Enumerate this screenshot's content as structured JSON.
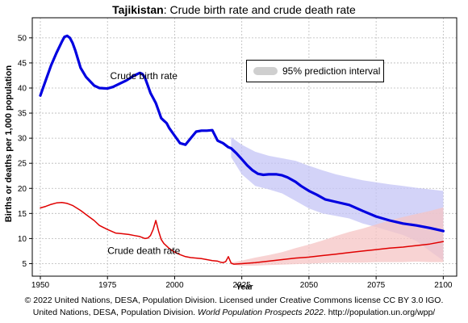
{
  "title_country": "Tajikistan",
  "title_rest": ": Crude birth rate and crude death rate",
  "footer_line1": "© 2022 United Nations, DESA, Population Division. Licensed under Creative Commons license CC BY 3.0 IGO.",
  "footer_line2_a": "United Nations, DESA, Population Division. ",
  "footer_line2_italic": "World Population Prospects 2022",
  "footer_line2_b": ". http://population.un.org/wpp/",
  "legend_label": "95% prediction interval",
  "chart_data": {
    "type": "line",
    "xlabel": "Year",
    "ylabel": "Births or deaths per 1,000 population",
    "xlim": [
      1947,
      2105
    ],
    "ylim": [
      2.5,
      54
    ],
    "x_ticks": [
      1950,
      1975,
      2000,
      2025,
      2050,
      2075,
      2100
    ],
    "y_ticks": [
      5,
      10,
      15,
      20,
      25,
      30,
      35,
      40,
      45,
      50
    ],
    "grid": true,
    "legend_position": "top-right",
    "colors": {
      "birth_line": "#0000e0",
      "birth_band": "#c4c4f6",
      "death_line": "#e00000",
      "death_band": "#f6c4c4",
      "grid": "#b8b8b8"
    },
    "series": [
      {
        "name": "Crude birth rate",
        "x": [
          1950,
          1952,
          1954,
          1956,
          1958,
          1959,
          1960,
          1961,
          1962,
          1963,
          1965,
          1967,
          1970,
          1972,
          1975,
          1977,
          1980,
          1982,
          1985,
          1987,
          1988,
          1989,
          1990,
          1991,
          1992,
          1993,
          1994,
          1995,
          1996,
          1997,
          1998,
          2000,
          2002,
          2004,
          2006,
          2008,
          2010,
          2012,
          2014,
          2016,
          2018,
          2020,
          2021,
          2023,
          2025,
          2027,
          2029,
          2031,
          2033,
          2035,
          2038,
          2040,
          2042,
          2045,
          2047,
          2050,
          2053,
          2056,
          2060,
          2065,
          2070,
          2075,
          2080,
          2085,
          2090,
          2095,
          2100
        ],
        "values": [
          38.5,
          41.5,
          44.5,
          47.0,
          49.2,
          50.2,
          50.4,
          50.0,
          49.0,
          47.5,
          44.0,
          42.2,
          40.5,
          40.0,
          39.9,
          40.2,
          41.0,
          41.5,
          42.5,
          43.0,
          42.8,
          42.0,
          40.5,
          39.0,
          38.0,
          37.0,
          35.5,
          34.0,
          33.5,
          33.0,
          32.0,
          30.5,
          29.0,
          28.7,
          30.0,
          31.3,
          31.5,
          31.5,
          31.6,
          29.5,
          29.0,
          28.2,
          28.0,
          27.0,
          25.8,
          24.6,
          23.6,
          22.9,
          22.7,
          22.8,
          22.8,
          22.6,
          22.2,
          21.3,
          20.5,
          19.5,
          18.7,
          17.8,
          17.3,
          16.7,
          15.5,
          14.4,
          13.6,
          13.0,
          12.6,
          12.1,
          11.5
        ]
      },
      {
        "name": "Crude death rate",
        "x": [
          1950,
          1952,
          1954,
          1956,
          1958,
          1960,
          1962,
          1965,
          1968,
          1970,
          1972,
          1975,
          1978,
          1980,
          1983,
          1985,
          1987,
          1989,
          1990,
          1991,
          1992,
          1993,
          1994,
          1995,
          1996,
          1997,
          1998,
          2000,
          2002,
          2004,
          2006,
          2008,
          2010,
          2012,
          2014,
          2016,
          2017,
          2018,
          2019,
          2020,
          2021,
          2022,
          2025,
          2030,
          2035,
          2040,
          2045,
          2050,
          2055,
          2060,
          2065,
          2070,
          2075,
          2080,
          2085,
          2090,
          2095,
          2100
        ],
        "values": [
          16.1,
          16.4,
          16.8,
          17.1,
          17.2,
          17.0,
          16.6,
          15.6,
          14.4,
          13.6,
          12.6,
          11.8,
          11.1,
          11.0,
          10.8,
          10.6,
          10.4,
          10.0,
          10.1,
          10.6,
          11.8,
          13.6,
          11.5,
          9.8,
          9.0,
          8.5,
          8.0,
          7.3,
          6.8,
          6.4,
          6.2,
          6.1,
          6.0,
          5.8,
          5.6,
          5.5,
          5.3,
          5.2,
          5.4,
          6.4,
          5.1,
          4.9,
          5.0,
          5.2,
          5.5,
          5.8,
          6.1,
          6.3,
          6.6,
          6.9,
          7.2,
          7.5,
          7.8,
          8.1,
          8.3,
          8.6,
          8.9,
          9.4
        ]
      }
    ],
    "prediction_intervals": [
      {
        "series": "Crude birth rate",
        "x": [
          2021,
          2025,
          2030,
          2035,
          2040,
          2045,
          2050,
          2055,
          2060,
          2065,
          2070,
          2075,
          2080,
          2085,
          2090,
          2095,
          2100
        ],
        "lower": [
          26.2,
          22.8,
          20.5,
          19.8,
          19.0,
          17.5,
          16.0,
          15.0,
          14.5,
          14.0,
          13.0,
          12.3,
          11.5,
          10.7,
          9.5,
          7.5,
          5.6
        ],
        "upper": [
          30.2,
          28.7,
          27.3,
          26.5,
          26.0,
          25.5,
          24.5,
          23.6,
          22.8,
          22.2,
          21.6,
          21.2,
          20.8,
          20.5,
          20.1,
          19.8,
          19.5
        ]
      },
      {
        "series": "Crude death rate",
        "x": [
          2021,
          2025,
          2030,
          2035,
          2040,
          2045,
          2050,
          2055,
          2060,
          2065,
          2070,
          2075,
          2080,
          2085,
          2090,
          2095,
          2100
        ],
        "lower": [
          4.8,
          4.6,
          4.6,
          4.7,
          4.8,
          4.9,
          5.0,
          5.1,
          5.2,
          5.2,
          5.2,
          5.3,
          5.3,
          5.3,
          5.4,
          5.3,
          5.3
        ],
        "upper": [
          5.2,
          5.6,
          6.2,
          6.7,
          7.3,
          8.1,
          8.8,
          9.6,
          10.5,
          11.3,
          12.0,
          12.8,
          13.6,
          14.3,
          14.9,
          15.5,
          16.2
        ]
      }
    ],
    "annotations": [
      {
        "text": "Crude birth rate",
        "x": 1976,
        "y": 41.8
      },
      {
        "text": "Crude death rate",
        "x": 1975,
        "y": 6.9
      }
    ]
  }
}
